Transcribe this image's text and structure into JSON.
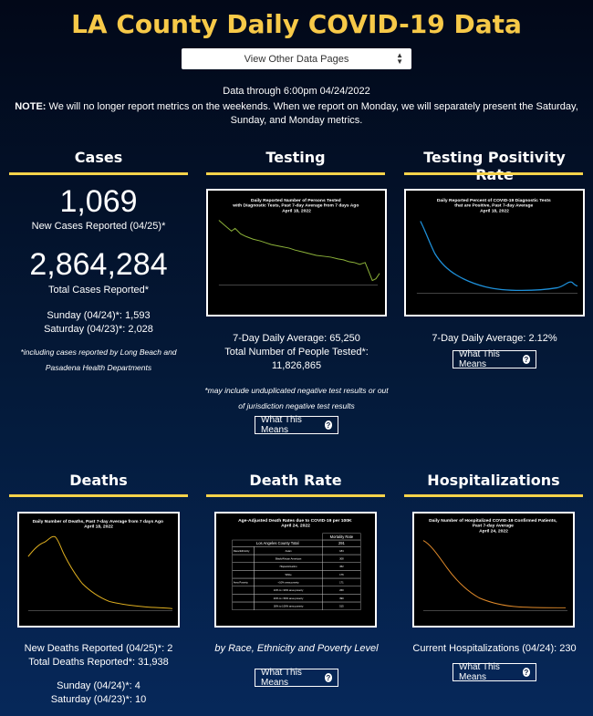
{
  "header": {
    "title": "LA County Daily COVID-19 Data",
    "page_select": "View Other Data Pages",
    "data_through": "Data through 6:00pm 04/24/2022",
    "note_label": "NOTE:",
    "note_text": " We will no longer report metrics on the weekends. When we report on Monday, we will separately present the Saturday, Sunday, and Monday metrics."
  },
  "cases": {
    "title": "Cases",
    "new_number": "1,069",
    "new_label": "New Cases Reported (04/25)*",
    "total_number": "2,864,284",
    "total_label": "Total Cases Reported*",
    "sunday": "Sunday (04/24)*: 1,593",
    "saturday": "Saturday (04/23)*: 2,028",
    "footnote": "*including cases reported by Long Beach and Pasadena Health Departments"
  },
  "testing": {
    "title": "Testing",
    "chart_title": "Daily Reported Number of Persons Tested with Diagnostic Tests, Past 7-day Average from 7 days Ago April 18, 2022",
    "avg": "7-Day Daily Average: 65,250",
    "total_label": "Total Number of People Tested*:",
    "total_value": "11,826,865",
    "footnote": "*may include unduplicated negative test results or out of jurisdiction negative test results",
    "button": "What This Means"
  },
  "positivity": {
    "title": "Testing Positivity Rate",
    "chart_title": "Daily Reported Percent of COVID-19 Diagnostic Tests that are Positive, Past 7-day Average April 18, 2022",
    "avg": "7-Day Daily Average: 2.12%",
    "button": "What This Means"
  },
  "deaths": {
    "title": "Deaths",
    "chart_title": "Daily Number of Deaths, Past 7-day Average from 7 days Ago April 18, 2022",
    "new": "New Deaths Reported (04/25)*: 2",
    "total": "Total Deaths Reported*: 31,938",
    "sunday": "Sunday (04/24)*: 4",
    "saturday": "Saturday (04/23)*: 10"
  },
  "death_rate": {
    "title": "Death Rate",
    "chart_title": "Age-Adjusted Death Rates due to COVID-19 per 100K April 24, 2022",
    "table_header": "Mortality Rate",
    "table_total_label": "Los Angeles County Total",
    "table_total_value": "291",
    "rows": [
      {
        "group": "Race/Ethnicity",
        "label": "Asian",
        "value": "184"
      },
      {
        "group": "",
        "label": "Black/African American",
        "value": "308"
      },
      {
        "group": "",
        "label": "Hispanic/Latino",
        "value": "452"
      },
      {
        "group": "",
        "label": "White",
        "value": "176"
      },
      {
        "group": "Area Poverty",
        "label": "<10% area poverty",
        "value": "171"
      },
      {
        "group": "",
        "label": "10% to <20% area poverty",
        "value": "260"
      },
      {
        "group": "",
        "label": "20% to <30% area poverty",
        "value": "390"
      },
      {
        "group": "",
        "label": "30% to 100% area poverty",
        "value": "515"
      }
    ],
    "caption": "by Race, Ethnicity and Poverty Level",
    "button": "What This Means"
  },
  "hospitalizations": {
    "title": "Hospitalizations",
    "chart_title": "Daily Number of Hospitalized COVID-19 Confirmed Patients, Past 7-day Average April 24, 2022",
    "current": "Current Hospitalizations (04/24): 230",
    "button": "What This Means"
  },
  "colors": {
    "title": "#f7c948",
    "section_bar": "#f7d34a",
    "testing_line": "#8db33a",
    "positivity_line": "#1e8fd8",
    "deaths_line": "#e0b020",
    "hosp_line": "#e08a2a"
  }
}
